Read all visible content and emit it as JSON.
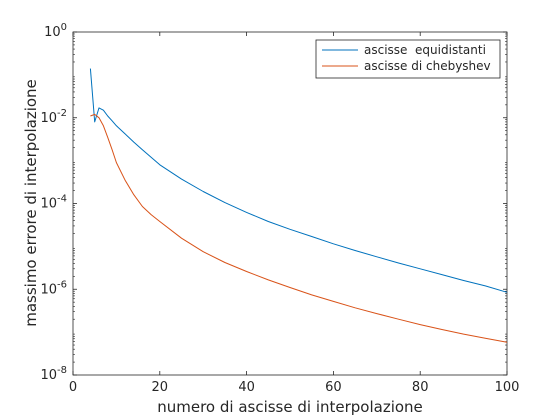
{
  "chart_data": {
    "type": "line",
    "title": "",
    "xlabel": "numero di ascisse di interpolazione",
    "ylabel": "massimo errore di interpolazione",
    "xlim": [
      0,
      100
    ],
    "ylim": [
      1e-08,
      1
    ],
    "yscale": "log",
    "grid": false,
    "legend_position": "top-right",
    "x_ticks": [
      {
        "value": 0,
        "label": "0"
      },
      {
        "value": 20,
        "label": "20"
      },
      {
        "value": 40,
        "label": "40"
      },
      {
        "value": 60,
        "label": "60"
      },
      {
        "value": 80,
        "label": "80"
      },
      {
        "value": 100,
        "label": "100"
      }
    ],
    "y_ticks": [
      {
        "value": 1,
        "base": "10",
        "exp": "0"
      },
      {
        "value": 0.01,
        "base": "10",
        "exp": "-2"
      },
      {
        "value": 0.0001,
        "base": "10",
        "exp": "-4"
      },
      {
        "value": 1e-06,
        "base": "10",
        "exp": "-6"
      },
      {
        "value": 1e-08,
        "base": "10",
        "exp": "-8"
      }
    ],
    "series": [
      {
        "name": "ascisse  equidistanti",
        "color": "#0072bd",
        "x": [
          4,
          5,
          6,
          7,
          8,
          9,
          10,
          12,
          14,
          16,
          18,
          20,
          25,
          30,
          35,
          40,
          45,
          50,
          55,
          60,
          65,
          70,
          75,
          80,
          85,
          90,
          95,
          100
        ],
        "y": [
          0.14,
          0.008,
          0.017,
          0.015,
          0.011,
          0.0085,
          0.0065,
          0.0042,
          0.0027,
          0.0018,
          0.0012,
          0.0008,
          0.00037,
          0.00019,
          0.000105,
          6.2e-05,
          3.8e-05,
          2.5e-05,
          1.7e-05,
          1.15e-05,
          8e-06,
          5.7e-06,
          4.1e-06,
          3e-06,
          2.2e-06,
          1.6e-06,
          1.2e-06,
          8.5e-07
        ]
      },
      {
        "name": "ascisse di chebyshev",
        "color": "#d95319",
        "x": [
          4,
          5,
          6,
          7,
          8,
          9,
          10,
          12,
          14,
          16,
          18,
          20,
          25,
          30,
          35,
          40,
          45,
          50,
          55,
          60,
          65,
          70,
          75,
          80,
          85,
          90,
          95,
          100
        ],
        "y": [
          0.011,
          0.012,
          0.01,
          0.0065,
          0.0035,
          0.0018,
          0.0009,
          0.00035,
          0.00016,
          8.5e-05,
          5.5e-05,
          3.8e-05,
          1.55e-05,
          7.5e-06,
          4.2e-06,
          2.6e-06,
          1.65e-06,
          1.1e-06,
          7.4e-07,
          5.2e-07,
          3.7e-07,
          2.7e-07,
          2e-07,
          1.5e-07,
          1.15e-07,
          9e-08,
          7.2e-08,
          5.8e-08
        ]
      }
    ]
  }
}
